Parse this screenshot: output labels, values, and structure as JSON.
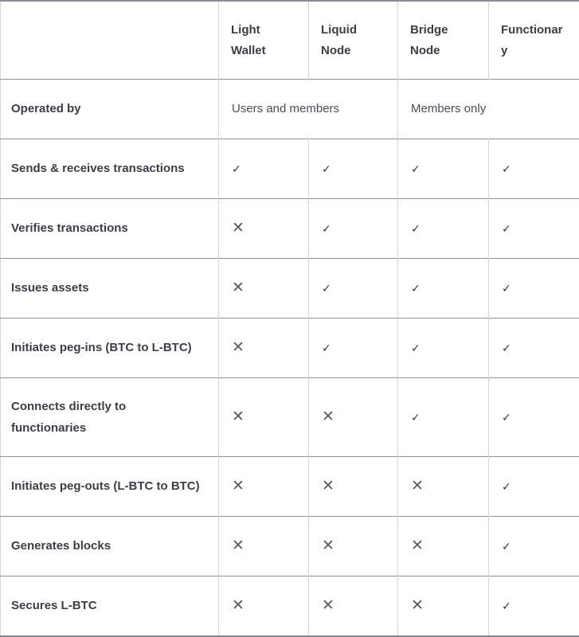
{
  "table": {
    "columns": [
      "",
      "Light\nWallet",
      "Liquid\nNode",
      "Bridge\nNode",
      "Functionar\ny"
    ],
    "operated_by": {
      "label": "Operated by",
      "users_and_members": "Users and members",
      "members_only": "Members only"
    },
    "rows": [
      {
        "label": "Sends & receives transactions",
        "cells": [
          "✓",
          "✓",
          "✓",
          "✓"
        ]
      },
      {
        "label": "Verifies transactions",
        "cells": [
          "✕",
          "✓",
          "✓",
          "✓"
        ]
      },
      {
        "label": "Issues assets",
        "cells": [
          "✕",
          "✓",
          "✓",
          "✓"
        ]
      },
      {
        "label": "Initiates peg-ins (BTC to L-BTC)",
        "cells": [
          "✕",
          "✓",
          "✓",
          "✓"
        ]
      },
      {
        "label": "Connects directly to\nfunctionaries",
        "cells": [
          "✕",
          "✕",
          "✓",
          "✓"
        ]
      },
      {
        "label": "Initiates peg-outs (L-BTC to BTC)",
        "cells": [
          "✕",
          "✕",
          "✕",
          "✓"
        ]
      },
      {
        "label": "Generates blocks",
        "cells": [
          "✕",
          "✕",
          "✕",
          "✓"
        ]
      },
      {
        "label": "Secures L-BTC",
        "cells": [
          "✕",
          "✕",
          "✕",
          "✓"
        ]
      }
    ],
    "icons": {
      "check": "✓",
      "cross": "✕"
    },
    "colors": {
      "rule_horizontal": "#8f949c",
      "rule_vertical": "#d6d7da",
      "text_bold": "#3d3d47",
      "text_regular": "#4c4c55",
      "check": "#35353e",
      "cross": "#5a5a63"
    }
  }
}
